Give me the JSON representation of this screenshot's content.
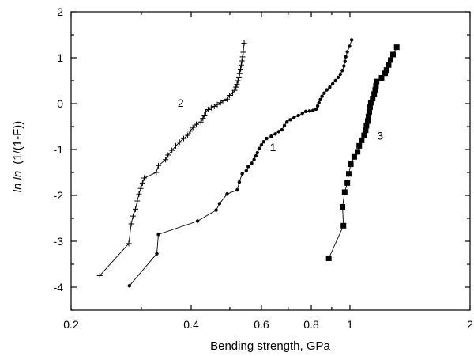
{
  "chart_data": {
    "type": "scatter",
    "title": "",
    "xlabel": "Bending strength, GPa",
    "ylabel_italic": "ln ln",
    "ylabel_rest": "(1/(1-F))",
    "xscale": "log",
    "xlim": [
      0.2,
      2
    ],
    "ylim": [
      -4.5,
      2
    ],
    "grid": false,
    "x_ticks": [
      {
        "value": 0.2,
        "label": "0.2"
      },
      {
        "value": 0.4,
        "label": "0.4"
      },
      {
        "value": 0.6,
        "label": "0.6"
      },
      {
        "value": 0.8,
        "label": "0.8"
      },
      {
        "value": 1,
        "label": "1"
      },
      {
        "value": 2,
        "label": "2"
      }
    ],
    "x_minor_ticks": [
      0.3,
      0.5,
      0.7,
      0.9
    ],
    "y_ticks": [
      {
        "value": -4,
        "label": "-4"
      },
      {
        "value": -3,
        "label": "-3"
      },
      {
        "value": -2,
        "label": "-2"
      },
      {
        "value": -1,
        "label": "-1"
      },
      {
        "value": 0,
        "label": "0"
      },
      {
        "value": 1,
        "label": "1"
      },
      {
        "value": 2,
        "label": "2"
      }
    ],
    "y_minor_ticks": [
      -4.5,
      -3.5,
      -2.5,
      -1.5,
      -0.5,
      0.5,
      1.5
    ],
    "series": [
      {
        "name": "2",
        "marker": "plus",
        "label_at": [
          0.37,
          0.02
        ],
        "points": [
          [
            0.236,
            -3.75
          ],
          [
            0.279,
            -3.05
          ],
          [
            0.283,
            -2.62
          ],
          [
            0.286,
            -2.45
          ],
          [
            0.29,
            -2.3
          ],
          [
            0.293,
            -2.12
          ],
          [
            0.296,
            -1.97
          ],
          [
            0.299,
            -1.85
          ],
          [
            0.302,
            -1.73
          ],
          [
            0.305,
            -1.62
          ],
          [
            0.327,
            -1.5
          ],
          [
            0.331,
            -1.35
          ],
          [
            0.345,
            -1.22
          ],
          [
            0.35,
            -1.12
          ],
          [
            0.358,
            -1.02
          ],
          [
            0.366,
            -0.92
          ],
          [
            0.374,
            -0.84
          ],
          [
            0.383,
            -0.76
          ],
          [
            0.392,
            -0.69
          ],
          [
            0.398,
            -0.6
          ],
          [
            0.404,
            -0.52
          ],
          [
            0.412,
            -0.45
          ],
          [
            0.423,
            -0.4
          ],
          [
            0.428,
            -0.32
          ],
          [
            0.432,
            -0.25
          ],
          [
            0.435,
            -0.18
          ],
          [
            0.441,
            -0.13
          ],
          [
            0.449,
            -0.09
          ],
          [
            0.457,
            -0.06
          ],
          [
            0.465,
            -0.02
          ],
          [
            0.474,
            0.02
          ],
          [
            0.483,
            0.06
          ],
          [
            0.492,
            0.1
          ],
          [
            0.499,
            0.18
          ],
          [
            0.508,
            0.23
          ],
          [
            0.514,
            0.29
          ],
          [
            0.518,
            0.36
          ],
          [
            0.521,
            0.42
          ],
          [
            0.524,
            0.5
          ],
          [
            0.527,
            0.58
          ],
          [
            0.529,
            0.66
          ],
          [
            0.532,
            0.75
          ],
          [
            0.534,
            0.84
          ],
          [
            0.536,
            0.93
          ],
          [
            0.538,
            1.02
          ],
          [
            0.54,
            1.12
          ],
          [
            0.543,
            1.32
          ]
        ]
      },
      {
        "name": "1",
        "marker": "dot",
        "label_at": [
          0.63,
          -0.95
        ],
        "points": [
          [
            0.28,
            -3.97
          ],
          [
            0.328,
            -3.27
          ],
          [
            0.331,
            -2.85
          ],
          [
            0.415,
            -2.56
          ],
          [
            0.462,
            -2.32
          ],
          [
            0.471,
            -2.18
          ],
          [
            0.492,
            -1.97
          ],
          [
            0.522,
            -1.88
          ],
          [
            0.528,
            -1.71
          ],
          [
            0.537,
            -1.53
          ],
          [
            0.55,
            -1.46
          ],
          [
            0.556,
            -1.37
          ],
          [
            0.567,
            -1.3
          ],
          [
            0.575,
            -1.22
          ],
          [
            0.581,
            -1.14
          ],
          [
            0.586,
            -1.07
          ],
          [
            0.592,
            -0.98
          ],
          [
            0.6,
            -0.9
          ],
          [
            0.608,
            -0.83
          ],
          [
            0.618,
            -0.76
          ],
          [
            0.635,
            -0.71
          ],
          [
            0.65,
            -0.66
          ],
          [
            0.663,
            -0.61
          ],
          [
            0.675,
            -0.57
          ],
          [
            0.685,
            -0.48
          ],
          [
            0.695,
            -0.4
          ],
          [
            0.709,
            -0.35
          ],
          [
            0.724,
            -0.31
          ],
          [
            0.742,
            -0.26
          ],
          [
            0.76,
            -0.21
          ],
          [
            0.775,
            -0.17
          ],
          [
            0.792,
            -0.16
          ],
          [
            0.808,
            -0.15
          ],
          [
            0.822,
            -0.12
          ],
          [
            0.83,
            -0.05
          ],
          [
            0.836,
            0.02
          ],
          [
            0.843,
            0.09
          ],
          [
            0.851,
            0.16
          ],
          [
            0.862,
            0.23
          ],
          [
            0.875,
            0.3
          ],
          [
            0.89,
            0.36
          ],
          [
            0.905,
            0.43
          ],
          [
            0.92,
            0.5
          ],
          [
            0.934,
            0.57
          ],
          [
            0.946,
            0.64
          ],
          [
            0.957,
            0.72
          ],
          [
            0.966,
            0.82
          ],
          [
            0.972,
            0.92
          ],
          [
            0.976,
            1.02
          ],
          [
            0.985,
            1.13
          ],
          [
            0.998,
            1.25
          ],
          [
            1.01,
            1.39
          ]
        ]
      },
      {
        "name": "3",
        "marker": "square",
        "label_at": [
          1.17,
          -0.7
        ],
        "points": [
          [
            0.885,
            -3.37
          ],
          [
            0.963,
            -2.66
          ],
          [
            0.958,
            -2.25
          ],
          [
            0.97,
            -1.93
          ],
          [
            0.985,
            -1.73
          ],
          [
            0.993,
            -1.53
          ],
          [
            1.005,
            -1.32
          ],
          [
            1.025,
            -1.16
          ],
          [
            1.045,
            -1.05
          ],
          [
            1.055,
            -0.92
          ],
          [
            1.07,
            -0.8
          ],
          [
            1.085,
            -0.69
          ],
          [
            1.095,
            -0.58
          ],
          [
            1.1,
            -0.48
          ],
          [
            1.108,
            -0.38
          ],
          [
            1.113,
            -0.28
          ],
          [
            1.118,
            -0.18
          ],
          [
            1.123,
            -0.08
          ],
          [
            1.128,
            0.02
          ],
          [
            1.14,
            0.11
          ],
          [
            1.15,
            0.21
          ],
          [
            1.157,
            0.3
          ],
          [
            1.162,
            0.39
          ],
          [
            1.166,
            0.48
          ],
          [
            1.2,
            0.56
          ],
          [
            1.225,
            0.66
          ],
          [
            1.235,
            0.73
          ],
          [
            1.25,
            0.84
          ],
          [
            1.265,
            0.95
          ],
          [
            1.282,
            1.07
          ],
          [
            1.31,
            1.23
          ]
        ]
      }
    ]
  }
}
